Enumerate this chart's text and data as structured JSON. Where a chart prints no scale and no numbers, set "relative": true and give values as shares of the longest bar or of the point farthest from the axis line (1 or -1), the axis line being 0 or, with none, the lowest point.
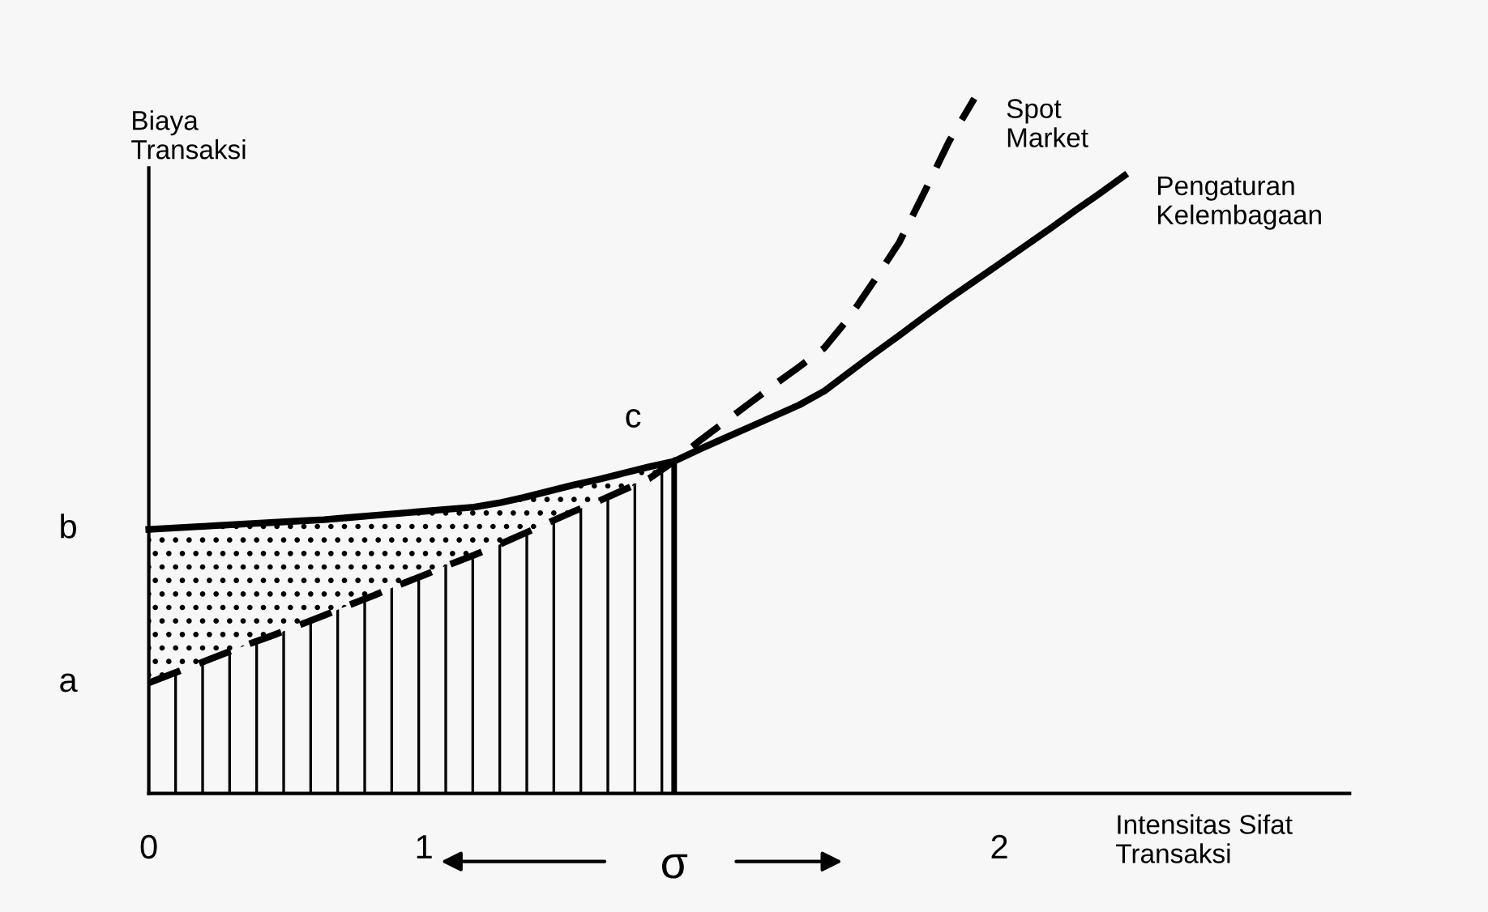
{
  "chart_data": {
    "type": "line",
    "relative": true,
    "xlabel": "Intensitas Sifat\nTransaksi",
    "ylabel": "Biaya\nTransaksi",
    "categories": [
      "0",
      null,
      null,
      null,
      null,
      null,
      null,
      null,
      null,
      null,
      null,
      "1",
      null,
      null,
      null,
      null,
      null,
      null,
      null,
      null,
      null,
      null,
      null,
      null,
      null,
      null,
      null,
      null,
      null,
      null,
      null,
      null,
      null,
      null,
      "2",
      null,
      null,
      null,
      null,
      null,
      null,
      null,
      null,
      null,
      null,
      null,
      null,
      null,
      null
    ],
    "series": [
      {
        "name": "Pengaturan\nKelembagaan",
        "color": "#000000",
        "line_style": "solid",
        "values": [
          0.38,
          0.382,
          0.384,
          0.386,
          0.388,
          0.39,
          0.392,
          0.394,
          0.397,
          0.4,
          0.403,
          0.406,
          0.409,
          0.412,
          0.418,
          0.426,
          0.435,
          0.444,
          0.452,
          0.461,
          0.47,
          0.478,
          0.495,
          0.511,
          0.527,
          0.543,
          0.559,
          0.579,
          0.606,
          0.633,
          0.659,
          0.686,
          0.712,
          0.737,
          0.762,
          0.787,
          0.812,
          0.838,
          0.863,
          0.889,
          null,
          null,
          null,
          null,
          null,
          null,
          null,
          null,
          null
        ]
      },
      {
        "name": "Spot\nMarket",
        "color": "#000000",
        "line_style": "dashed",
        "values": [
          0.159,
          0.173,
          0.187,
          0.201,
          0.215,
          0.228,
          0.242,
          0.256,
          0.271,
          0.285,
          0.3,
          0.314,
          0.329,
          0.343,
          0.358,
          0.374,
          0.39,
          0.406,
          0.421,
          0.437,
          0.453,
          0.478,
          0.507,
          0.534,
          0.561,
          0.588,
          0.614,
          0.641,
          0.685,
          0.738,
          0.793,
          0.865,
          0.939,
          1.0,
          null,
          null,
          null,
          null,
          null,
          null,
          null,
          null,
          null,
          null,
          null,
          null,
          null,
          null,
          null
        ]
      }
    ],
    "annotations": [
      "a",
      "b",
      "c",
      "σ"
    ],
    "grid": false
  }
}
